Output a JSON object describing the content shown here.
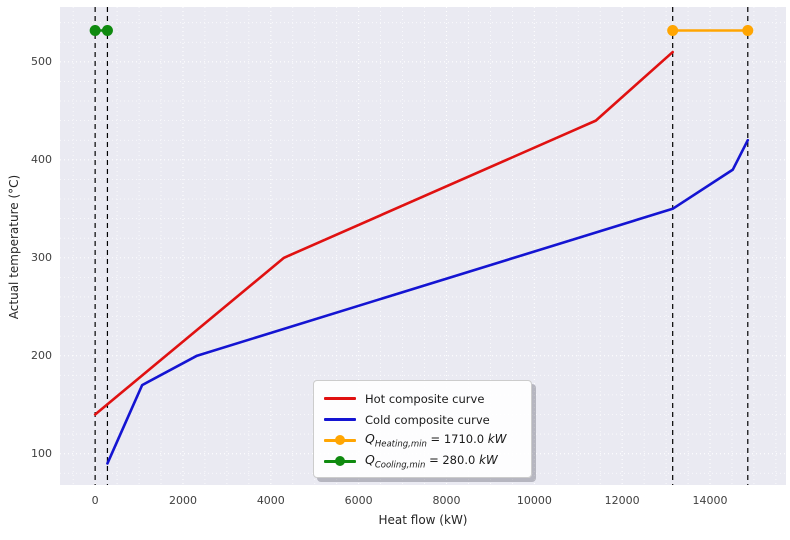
{
  "chart_data": {
    "type": "line",
    "title": "",
    "xlabel": "Heat flow (kW)",
    "ylabel": "Actual temperature (°C)",
    "xlim": [
      -800,
      15730
    ],
    "ylim": [
      68,
      556
    ],
    "x_ticks": [
      0,
      2000,
      4000,
      6000,
      8000,
      10000,
      12000,
      14000
    ],
    "y_ticks": [
      100,
      200,
      300,
      400,
      500
    ],
    "grid": {
      "color": "#ffffff",
      "minor_x_step": 500,
      "minor_y_step": 20,
      "major_x_step": 2000,
      "major_y_step": 100,
      "background": "#eaeaf2"
    },
    "vlines": {
      "x": [
        0,
        280,
        13150,
        14860
      ],
      "color": "#000000",
      "style": "dashed"
    },
    "series": [
      {
        "name": "hot-composite-curve",
        "label": "Hot composite curve",
        "color": "#e01111",
        "width": 2.6,
        "markers": false,
        "points": [
          [
            0,
            140
          ],
          [
            4300,
            300
          ],
          [
            11400,
            440
          ],
          [
            13150,
            510
          ]
        ]
      },
      {
        "name": "cold-composite-curve",
        "label": "Cold composite curve",
        "color": "#1414d2",
        "width": 2.6,
        "markers": false,
        "points": [
          [
            280,
            90
          ],
          [
            1070,
            170
          ],
          [
            2320,
            200
          ],
          [
            13150,
            350
          ],
          [
            14520,
            390
          ],
          [
            14860,
            420
          ]
        ]
      },
      {
        "name": "q-heating-min-line",
        "label": "Q_Heating,min = 1710.0 kW",
        "color": "#ffa502",
        "width": 2.6,
        "markers": true,
        "marker_r": 5.5,
        "points": [
          [
            13150,
            532
          ],
          [
            14860,
            532
          ]
        ]
      },
      {
        "name": "q-cooling-min-line",
        "label": "Q_Cooling,min = 280.0 kW",
        "color": "#0f8a0f",
        "width": 2.6,
        "markers": true,
        "marker_r": 5.5,
        "points": [
          [
            0,
            532
          ],
          [
            280,
            532
          ]
        ]
      }
    ],
    "annotations": {
      "q_heating_min_kw": 1710.0,
      "q_cooling_min_kw": 280.0
    },
    "legend_position": "lower-center"
  },
  "legend": {
    "items": [
      {
        "label": "Hot composite curve"
      },
      {
        "label": "Cold composite curve"
      },
      {
        "q": "Q",
        "sub": "Heating,min",
        "eq": " = 1710.0 ",
        "unit": "kW"
      },
      {
        "q": "Q",
        "sub": "Cooling,min",
        "eq": " = 280.0 ",
        "unit": "kW"
      }
    ]
  }
}
